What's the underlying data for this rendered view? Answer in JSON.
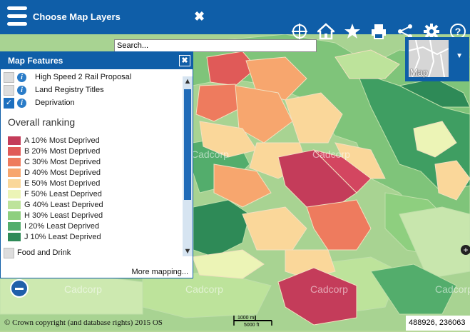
{
  "header": {
    "title": "Choose Map Layers",
    "close_label": "✖"
  },
  "toolbar": {
    "icons": [
      "crosshair-icon",
      "home-icon",
      "star-icon",
      "print-icon",
      "share-icon",
      "gear-icon",
      "help-icon"
    ]
  },
  "search": {
    "value": "Search..."
  },
  "panel": {
    "title": "Map Features",
    "close_label": "✖",
    "layers": [
      {
        "label": "High Speed 2 Rail Proposal",
        "checked": false
      },
      {
        "label": "Land Registry Titles",
        "checked": false
      },
      {
        "label": "Deprivation",
        "checked": true
      }
    ],
    "legend_title": "Overall ranking",
    "legend": [
      {
        "label": "A 10% Most Deprived",
        "color": "#c43c5a"
      },
      {
        "label": "B 20% Most Deprived",
        "color": "#e05a58"
      },
      {
        "label": "C 30% Most Deprived",
        "color": "#ee7b5e"
      },
      {
        "label": "D 40% Most Deprived",
        "color": "#f7a66e"
      },
      {
        "label": "E 50% Most Deprived",
        "color": "#fad79a"
      },
      {
        "label": "F 50% Least Deprived",
        "color": "#ecf4b6"
      },
      {
        "label": "G 40% Least Deprived",
        "color": "#bde39b"
      },
      {
        "label": "H 30% Least Deprived",
        "color": "#8ecf7f"
      },
      {
        "label": "I 20% Least Deprived",
        "color": "#53ad6c"
      },
      {
        "label": "J 10% Least Deprived",
        "color": "#2e8a57"
      }
    ],
    "extra_layer": "Food and Drink",
    "more_label": "More mapping..."
  },
  "basemap": {
    "label": "Map"
  },
  "watermark": "Cadcorp",
  "copyright": "© Crown copyright (and database rights) 2015 OS",
  "scale": {
    "top": "1000 m",
    "bottom": "5000 ft"
  },
  "coordinates": "488926, 236063"
}
